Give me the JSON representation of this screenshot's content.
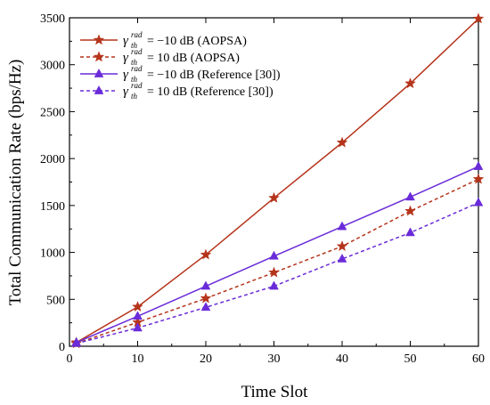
{
  "chart_data": {
    "type": "line",
    "xlabel": "Time Slot",
    "ylabel": "Total Communication Rate (bps/Hz)",
    "xlim": [
      0,
      60
    ],
    "ylim": [
      0,
      3500
    ],
    "xticks": [
      0,
      10,
      20,
      30,
      40,
      50,
      60
    ],
    "yticks": [
      0,
      500,
      1000,
      1500,
      2000,
      2500,
      3000,
      3500
    ],
    "legend_position": "top-left",
    "grid": false,
    "x": [
      1,
      10,
      20,
      30,
      40,
      50,
      60
    ],
    "series": [
      {
        "name": "γ_th^rad = −10 dB (AOPSA)",
        "symbol": {
          "gamma": "γ",
          "sub": "th",
          "sup": "rad",
          "rest": "= −10 dB (AOPSA)"
        },
        "color": "#b5341b",
        "dash": "solid",
        "marker": "star",
        "values": [
          40,
          420,
          975,
          1580,
          2170,
          2800,
          3490
        ]
      },
      {
        "name": "γ_th^rad = 10 dB (AOPSA)",
        "symbol": {
          "gamma": "γ",
          "sub": "th",
          "sup": "rad",
          "rest": "=  10 dB (AOPSA)"
        },
        "color": "#b5341b",
        "dash": "dashed",
        "marker": "star",
        "values": [
          30,
          255,
          510,
          785,
          1065,
          1440,
          1780
        ]
      },
      {
        "name": "γ_th^rad = −10 dB (Reference [30])",
        "symbol": {
          "gamma": "γ",
          "sub": "th",
          "sup": "rad",
          "rest": "= −10 dB (Reference [30])"
        },
        "color": "#6a2bd9",
        "dash": "solid",
        "marker": "triangle",
        "values": [
          40,
          320,
          640,
          960,
          1275,
          1590,
          1915
        ]
      },
      {
        "name": "γ_th^rad = 10 dB (Reference [30])",
        "symbol": {
          "gamma": "γ",
          "sub": "th",
          "sup": "rad",
          "rest": "=  10 dB (Reference [30])"
        },
        "color": "#6a2bd9",
        "dash": "dashed",
        "marker": "triangle",
        "values": [
          30,
          195,
          415,
          640,
          930,
          1210,
          1530
        ]
      }
    ]
  }
}
